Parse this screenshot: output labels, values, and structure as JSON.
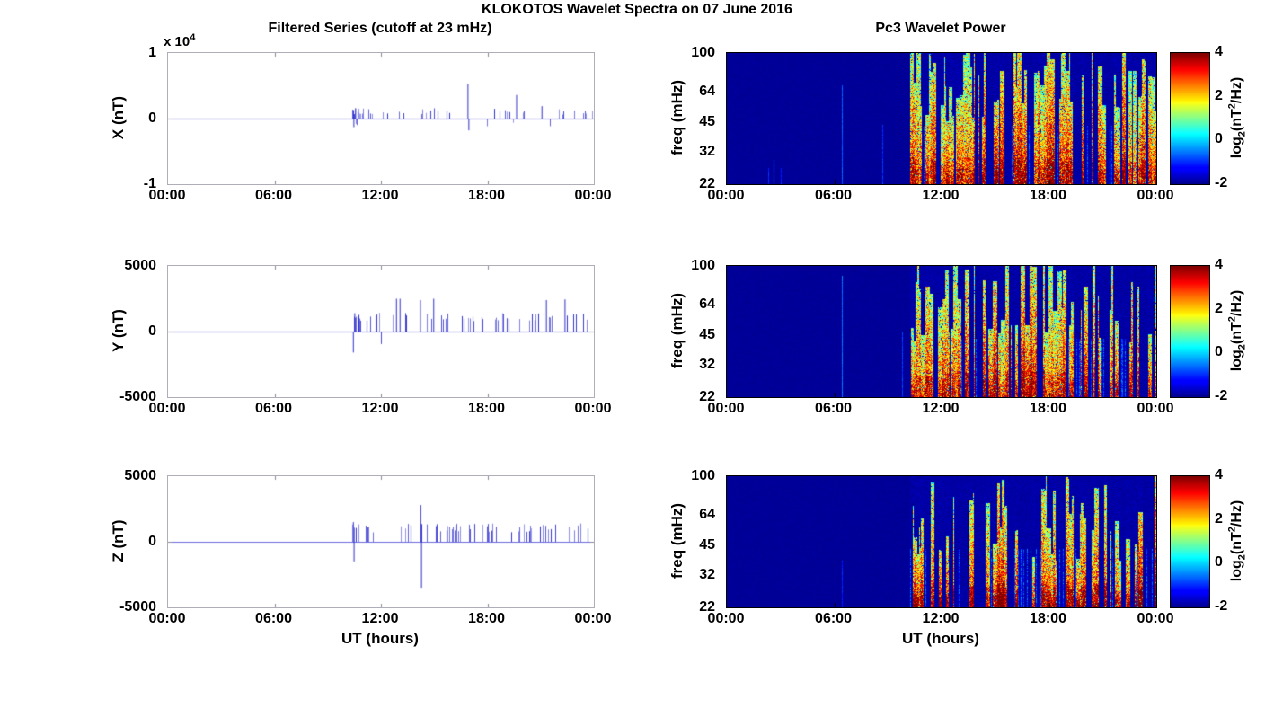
{
  "figure": {
    "title": "KLOKOTOS Wavelet Spectra on 07 June 2016",
    "left_subtitle": "Filtered Series (cutoff at 23 mHz)",
    "right_subtitle": "Pc3 Wavelet Power",
    "xlabel_left": "UT (hours)",
    "xlabel_right": "UT (hours)",
    "x_tick_labels": [
      "00:00",
      "06:00",
      "12:00",
      "18:00",
      "00:00"
    ],
    "background": "#ffffff",
    "trace_color": "#2222cc",
    "series_axis_border": "#aeaeb8",
    "spectro_axis_border": "#000000",
    "spectro_quiet_color": "#00008f",
    "spectro_max_color": "#800000"
  },
  "chart_data": [
    {
      "id": "x-filtered-series",
      "type": "line",
      "ylabel": "X (nT)",
      "y_multiplier": {
        "text": "x 10",
        "exp": "4"
      },
      "ylim": [
        -10000,
        10000
      ],
      "yticks": [
        {
          "v": 10000,
          "label": "1"
        },
        {
          "v": 0,
          "label": "0"
        },
        {
          "v": -10000,
          "label": "-1"
        }
      ],
      "xlim_hours": [
        0,
        24
      ],
      "quiet_hours": [
        0,
        10.4
      ],
      "active_hours": [
        10.4,
        24
      ],
      "onset_hour": 10.4,
      "spike_density": 0.3,
      "spike_amp_range_nT": [
        600,
        1600
      ],
      "negative_fraction": 0.05,
      "onset_cluster": {
        "span_hours": 0.6,
        "density": 0.85
      },
      "major_spikes": [
        {
          "t": 10.45,
          "v": -1300
        },
        {
          "t": 10.55,
          "v": 1600
        },
        {
          "t": 16.88,
          "v": 5300
        },
        {
          "t": 16.93,
          "v": -1800
        },
        {
          "t": 19.62,
          "v": 3600
        },
        {
          "t": 21.05,
          "v": 1900
        }
      ],
      "seed": 101
    },
    {
      "id": "x-wavelet-spectrogram",
      "type": "heatmap",
      "ylabel": "freq (mHz)",
      "yscale": "log",
      "ylim_mHz": [
        22,
        100
      ],
      "yticks": [
        {
          "v": 100,
          "label": "100"
        },
        {
          "v": 64,
          "label": "64"
        },
        {
          "v": 45,
          "label": "45"
        },
        {
          "v": 32,
          "label": "32"
        },
        {
          "v": 22,
          "label": "22"
        }
      ],
      "xlim_hours": [
        0,
        24
      ],
      "value_range_log2": [
        -2,
        4
      ],
      "colormap": "jet",
      "quiet_value": -2,
      "onset_hour": 10.25,
      "burst_probability": 0.58,
      "early_solid_hours": 3.2,
      "peak_reach": [
        0.45,
        1.0
      ],
      "strength_range": [
        2.4,
        4.0
      ],
      "bottom_boost": 0.5,
      "pre_onset_features": [
        {
          "t": 2.3,
          "top_frac": 0.12,
          "value": -1.0
        },
        {
          "t": 2.6,
          "top_frac": 0.18,
          "value": -0.9
        },
        {
          "t": 3.0,
          "top_frac": 0.12,
          "value": -1.1
        },
        {
          "t": 6.45,
          "top_frac": 0.75,
          "value": -0.7
        },
        {
          "t": 8.7,
          "top_frac": 0.45,
          "value": -1.0
        }
      ],
      "colorbar": {
        "ticks": [
          "4",
          "2",
          "0",
          "-2"
        ],
        "range": [
          -2,
          4
        ],
        "label": {
          "pre": "log",
          "sub": "2",
          "mid": "(nT",
          "sup": "2",
          "post": "/Hz)"
        }
      },
      "seed": 202
    },
    {
      "id": "y-filtered-series",
      "type": "line",
      "ylabel": "Y (nT)",
      "ylim": [
        -5000,
        5000
      ],
      "yticks": [
        {
          "v": 5000,
          "label": "5000"
        },
        {
          "v": 0,
          "label": "0"
        },
        {
          "v": -5000,
          "label": "-5000"
        }
      ],
      "xlim_hours": [
        0,
        24
      ],
      "quiet_hours": [
        0,
        10.4
      ],
      "active_hours": [
        10.4,
        24
      ],
      "onset_hour": 10.4,
      "spike_density": 0.32,
      "spike_amp_range_nT": [
        800,
        1450
      ],
      "negative_fraction": 0.04,
      "onset_cluster": {
        "span_hours": 0.45,
        "density": 0.8
      },
      "major_spikes": [
        {
          "t": 10.42,
          "v": -1600
        },
        {
          "t": 10.5,
          "v": 1400
        },
        {
          "t": 12.85,
          "v": 2500
        },
        {
          "t": 13.05,
          "v": 2500
        },
        {
          "t": 14.2,
          "v": 2400
        },
        {
          "t": 14.95,
          "v": 2500
        },
        {
          "t": 21.3,
          "v": 2400
        },
        {
          "t": 22.35,
          "v": 2450
        }
      ],
      "seed": 303
    },
    {
      "id": "y-wavelet-spectrogram",
      "type": "heatmap",
      "ylabel": "freq (mHz)",
      "yscale": "log",
      "ylim_mHz": [
        22,
        100
      ],
      "yticks": [
        {
          "v": 100,
          "label": "100"
        },
        {
          "v": 64,
          "label": "64"
        },
        {
          "v": 45,
          "label": "45"
        },
        {
          "v": 32,
          "label": "32"
        },
        {
          "v": 22,
          "label": "22"
        }
      ],
      "xlim_hours": [
        0,
        24
      ],
      "value_range_log2": [
        -2,
        4
      ],
      "colormap": "jet",
      "quiet_value": -2,
      "onset_hour": 10.25,
      "burst_probability": 0.55,
      "early_solid_hours": 3.0,
      "peak_reach": [
        0.4,
        1.0
      ],
      "strength_range": [
        2.4,
        4.0
      ],
      "bottom_boost": 0.5,
      "pre_onset_features": [
        {
          "t": 6.45,
          "top_frac": 0.92,
          "value": -0.6
        },
        {
          "t": 9.8,
          "top_frac": 0.5,
          "value": -0.9
        }
      ],
      "colorbar": {
        "ticks": [
          "4",
          "2",
          "0",
          "-2"
        ],
        "range": [
          -2,
          4
        ],
        "label": {
          "pre": "log",
          "sub": "2",
          "mid": "(nT",
          "sup": "2",
          "post": "/Hz)"
        }
      },
      "seed": 404
    },
    {
      "id": "z-filtered-series",
      "type": "line",
      "ylabel": "Z (nT)",
      "ylim": [
        -5000,
        5000
      ],
      "yticks": [
        {
          "v": 5000,
          "label": "5000"
        },
        {
          "v": 0,
          "label": "0"
        },
        {
          "v": -5000,
          "label": "-5000"
        }
      ],
      "xlim_hours": [
        0,
        24
      ],
      "quiet_hours": [
        0,
        10.4
      ],
      "active_hours": [
        10.4,
        24
      ],
      "onset_hour": 10.4,
      "spike_density": 0.3,
      "spike_amp_range_nT": [
        700,
        1400
      ],
      "negative_fraction": 0.05,
      "onset_cluster": {
        "span_hours": 0.2,
        "density": 0.5
      },
      "major_spikes": [
        {
          "t": 10.42,
          "v": 1500
        },
        {
          "t": 10.46,
          "v": -1500
        },
        {
          "t": 14.22,
          "v": 2800
        },
        {
          "t": 14.26,
          "v": -3500
        }
      ],
      "seed": 505
    },
    {
      "id": "z-wavelet-spectrogram",
      "type": "heatmap",
      "ylabel": "freq (mHz)",
      "yscale": "log",
      "ylim_mHz": [
        22,
        100
      ],
      "yticks": [
        {
          "v": 100,
          "label": "100"
        },
        {
          "v": 64,
          "label": "64"
        },
        {
          "v": 45,
          "label": "45"
        },
        {
          "v": 32,
          "label": "32"
        },
        {
          "v": 22,
          "label": "22"
        }
      ],
      "xlim_hours": [
        0,
        24
      ],
      "value_range_log2": [
        -2,
        4
      ],
      "colormap": "jet",
      "quiet_value": -2,
      "onset_hour": 10.25,
      "burst_probability": 0.48,
      "early_solid_hours": 1.5,
      "peak_reach": [
        0.35,
        0.95
      ],
      "strength_range": [
        2.4,
        4.0
      ],
      "bottom_boost": 0.9,
      "pre_onset_features": [
        {
          "t": 6.45,
          "top_frac": 0.35,
          "value": -1.1
        }
      ],
      "colorbar": {
        "ticks": [
          "4",
          "2",
          "0",
          "-2"
        ],
        "range": [
          -2,
          4
        ],
        "label": {
          "pre": "log",
          "sub": "2",
          "mid": "(nT",
          "sup": "2",
          "post": "/Hz)"
        }
      },
      "seed": 606
    }
  ]
}
